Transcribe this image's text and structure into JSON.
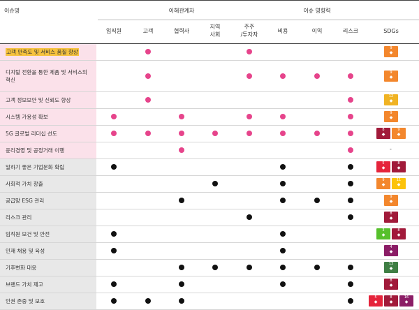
{
  "header": {
    "issue": "이슈명",
    "stakeholders": "이해관계자",
    "impact": "이슈 영향력",
    "cols": [
      "임직원",
      "고객",
      "협력사",
      "지역\n사회",
      "주주\n/투자자",
      "비용",
      "이익",
      "리스크",
      "SDGs"
    ]
  },
  "rows": [
    {
      "name": "고객 만족도 및 서비스 품질 향상",
      "style": "pink",
      "highlight": true,
      "dots": {
        "고객": "pink",
        "주주": "pink"
      },
      "sdgs": [
        {
          "color": "orange",
          "label": "9"
        }
      ]
    },
    {
      "name": "디지털 전환을 통한 제품 및 서비스의 혁신",
      "style": "pink",
      "tall": true,
      "dots": {
        "고객": "pink",
        "주주": "pink",
        "비용": "pink",
        "이익": "pink",
        "리스크": "pink"
      },
      "sdgs": [
        {
          "color": "orange",
          "label": "9"
        }
      ]
    },
    {
      "name": "고객 정보보안 및 신뢰도 향상",
      "style": "pink",
      "dots": {
        "고객": "pink",
        "리스크": "pink"
      },
      "sdgs": [
        {
          "color": "gold",
          "label": "12"
        }
      ]
    },
    {
      "name": "시스템 가용성 확보",
      "style": "pink",
      "dots": {
        "임직원": "pink",
        "협력사": "pink",
        "주주": "pink",
        "비용": "pink",
        "리스크": "pink"
      },
      "sdgs": [
        {
          "color": "orange",
          "label": "9"
        }
      ]
    },
    {
      "name": "5G 글로벌 리더십 선도",
      "style": "pink",
      "dots": {
        "임직원": "pink",
        "고객": "pink",
        "협력사": "pink",
        "지역": "pink",
        "주주": "pink",
        "비용": "pink",
        "이익": "pink",
        "리스크": "pink"
      },
      "sdgs": [
        {
          "color": "maroon",
          "label": "8"
        },
        {
          "color": "orange",
          "label": "9"
        }
      ]
    },
    {
      "name": "윤리경영 및 공정거래 이행",
      "style": "pink",
      "dots": {
        "협력사": "pink",
        "리스크": "pink"
      },
      "sdgs": [],
      "dash": "-"
    },
    {
      "name": "일하기 좋은 기업문화 확립",
      "style": "gray",
      "dots": {
        "임직원": "black",
        "비용": "black",
        "리스크": "black"
      },
      "sdgs": [
        {
          "color": "red",
          "label": "5"
        },
        {
          "color": "maroon",
          "label": "8"
        }
      ]
    },
    {
      "name": "사회적 가치 창출",
      "style": "gray",
      "dots": {
        "지역": "black",
        "비용": "black",
        "리스크": "black"
      },
      "sdgs": [
        {
          "color": "orange",
          "label": "9"
        },
        {
          "color": "yellow",
          "label": "11"
        }
      ]
    },
    {
      "name": "공급망 ESG 관리",
      "style": "gray",
      "dots": {
        "협력사": "black",
        "비용": "black",
        "이익": "black",
        "리스크": "black"
      },
      "sdgs": [
        {
          "color": "orange",
          "label": "9"
        }
      ]
    },
    {
      "name": "리스크 관리",
      "style": "gray",
      "dots": {
        "주주": "black",
        "리스크": "black"
      },
      "sdgs": [
        {
          "color": "maroon",
          "label": "8"
        }
      ]
    },
    {
      "name": "임직원 보건 및 안전",
      "style": "gray",
      "dots": {
        "임직원": "black",
        "비용": "black"
      },
      "sdgs": [
        {
          "color": "dgreen",
          "label": "3"
        },
        {
          "color": "maroon",
          "label": "8"
        }
      ]
    },
    {
      "name": "인재 채용 및 육성",
      "style": "gray",
      "dots": {
        "임직원": "black",
        "비용": "black"
      },
      "sdgs": [
        {
          "color": "purple",
          "label": "4"
        }
      ]
    },
    {
      "name": "기후변화 대응",
      "style": "gray",
      "dots": {
        "협력사": "black",
        "지역": "black",
        "주주": "black",
        "비용": "black",
        "이익": "black",
        "리스크": "black"
      },
      "sdgs": [
        {
          "color": "green",
          "label": "13"
        }
      ]
    },
    {
      "name": "브랜드 가치 제고",
      "style": "gray",
      "dots": {
        "임직원": "black",
        "협력사": "black",
        "비용": "black",
        "리스크": "black"
      },
      "sdgs": [
        {
          "color": "maroon",
          "label": "8"
        }
      ]
    },
    {
      "name": "인권 존중 및 보호",
      "style": "gray",
      "dots": {
        "임직원": "black",
        "고객": "black",
        "협력사": "black",
        "리스크": "black"
      },
      "sdgs": [
        {
          "color": "red",
          "label": "5"
        },
        {
          "color": "maroon",
          "label": "8"
        },
        {
          "color": "purple",
          "label": "16"
        }
      ]
    }
  ],
  "colors": {
    "pink_dot": "#e6448b",
    "black_dot": "#111111",
    "pink_row": "#fbe1ea",
    "gray_row": "#e8e8e8",
    "highlight": "#f6c23e"
  }
}
